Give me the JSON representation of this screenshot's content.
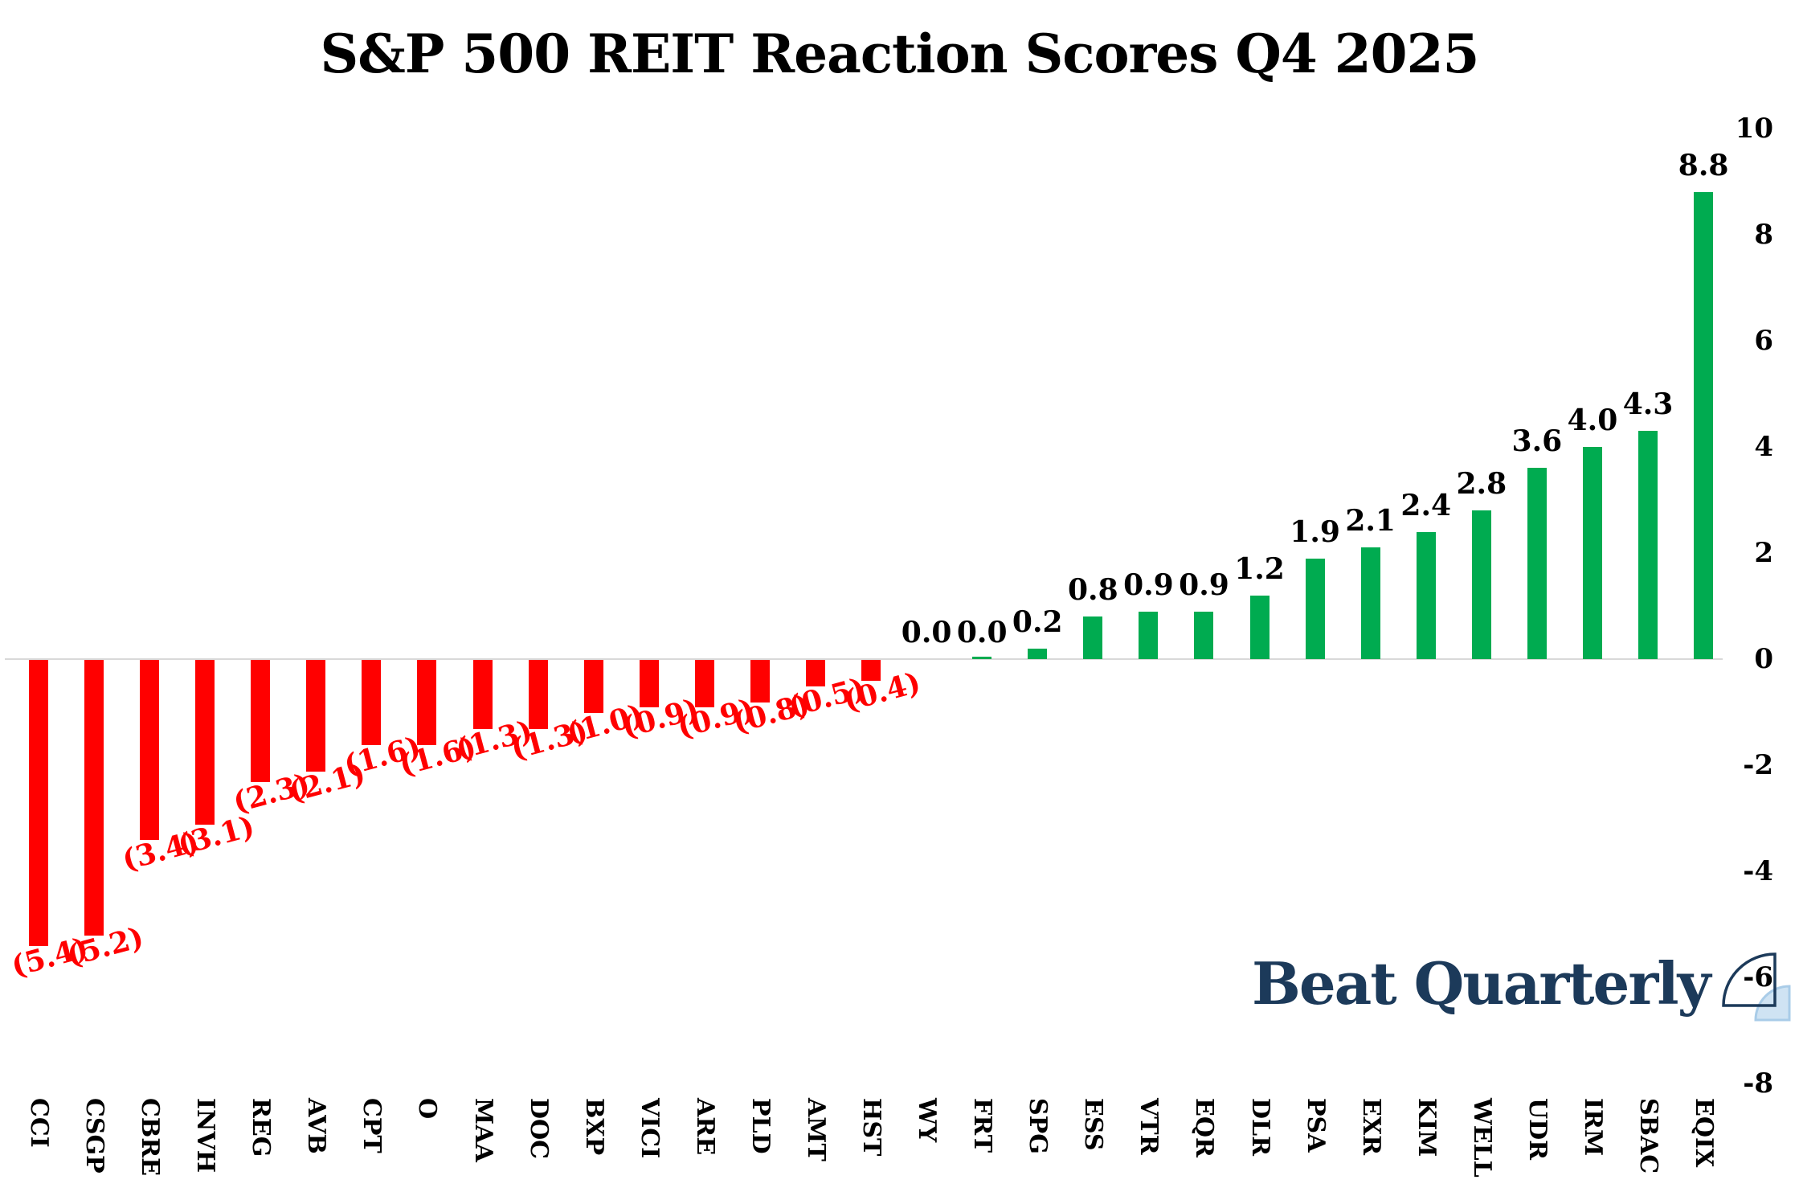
{
  "title": "S&P 500 REIT Reaction Scores Q4 2025",
  "logo": {
    "text": "Beat Quarterly",
    "icon": "quarter-sail-icon"
  },
  "colors": {
    "positive_bar": "#00ab50",
    "negative_bar": "#ff0000",
    "negative_label": "#ff0000",
    "positive_label": "#000000",
    "zero_line": "#d9d9d9",
    "logo_navy": "#1c3a5a",
    "logo_light_blue_fill": "#cfe3f3",
    "logo_light_blue_stroke": "#a9cce8"
  },
  "chart_data": {
    "type": "bar",
    "title": "S&P 500 REIT Reaction Scores Q4 2025",
    "categories": [
      "CCI",
      "CSGP",
      "CBRE",
      "INVH",
      "REG",
      "AVB",
      "CPT",
      "O",
      "MAA",
      "DOC",
      "BXP",
      "VICI",
      "ARE",
      "PLD",
      "AMT",
      "HST",
      "WY",
      "FRT",
      "SPG",
      "ESS",
      "VTR",
      "EQR",
      "DLR",
      "PSA",
      "EXR",
      "KIM",
      "WELL",
      "UDR",
      "IRM",
      "SBAC",
      "EQIX"
    ],
    "values": [
      -5.4,
      -5.2,
      -3.4,
      -3.1,
      -2.3,
      -2.1,
      -1.6,
      -1.6,
      -1.3,
      -1.3,
      -1.0,
      -0.9,
      -0.9,
      -0.8,
      -0.5,
      -0.4,
      0.0,
      0.0,
      0.2,
      0.8,
      0.9,
      0.9,
      1.2,
      1.9,
      2.1,
      2.4,
      2.8,
      3.6,
      4.0,
      4.3,
      8.8
    ],
    "value_labels": [
      "(5.4)",
      "(5.2)",
      "(3.4)",
      "(3.1)",
      "(2.3)",
      "(2.1)",
      "(1.6)",
      "(1.6)",
      "(1.3)",
      "(1.3)",
      "(1.0)",
      "(0.9)",
      "(0.9)",
      "(0.8)",
      "(0.5)",
      "(0.4)",
      "0.0",
      "0.0",
      "0.2",
      "0.8",
      "0.9",
      "0.9",
      "1.2",
      "1.9",
      "2.1",
      "2.4",
      "2.8",
      "3.6",
      "4.0",
      "4.3",
      "8.8"
    ],
    "tiny_bar_indices": [
      17
    ],
    "xlabel": "",
    "ylabel": "",
    "y_axis": {
      "side": "right",
      "ticks": [
        10,
        8,
        6,
        4,
        2,
        0,
        -2,
        -4,
        -6,
        -8
      ],
      "ylim": [
        -8,
        10
      ]
    },
    "grid": false,
    "legend": "none",
    "negative_style": "red bars, red parenthesized labels rotated below bars",
    "positive_style": "green bars, black labels above bars"
  }
}
